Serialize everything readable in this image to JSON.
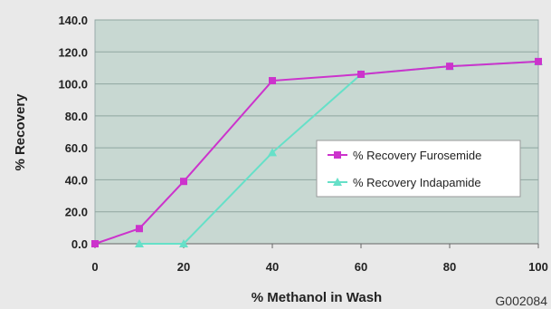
{
  "chart_data": {
    "type": "line",
    "xlabel": "% Methanol in Wash",
    "ylabel": "% Recovery",
    "xlim": [
      0,
      100
    ],
    "ylim": [
      0,
      140
    ],
    "x_ticks": [
      "0",
      "20",
      "40",
      "60",
      "80",
      "100"
    ],
    "y_ticks": [
      "0.0",
      "20.0",
      "40.0",
      "60.0",
      "80.0",
      "100.0",
      "120.0",
      "140.0"
    ],
    "grid": "horizontal",
    "legend_position": "right",
    "series": [
      {
        "name": "% Recovery Furosemide",
        "color": "#cc33cc",
        "marker": "square",
        "x": [
          0,
          10,
          20,
          40,
          60,
          80,
          100
        ],
        "y": [
          0,
          9.5,
          39,
          102,
          106,
          111,
          114
        ]
      },
      {
        "name": "% Recovery Indapamide",
        "color": "#66e0c8",
        "marker": "triangle",
        "x": [
          10,
          20,
          40,
          60,
          80,
          100
        ],
        "y": [
          0,
          0,
          57,
          106,
          111,
          114
        ]
      }
    ]
  },
  "figure_code": "G002084",
  "colors": {
    "plot_bg": "#c8d8d2",
    "page_bg": "#e9e9e9"
  }
}
